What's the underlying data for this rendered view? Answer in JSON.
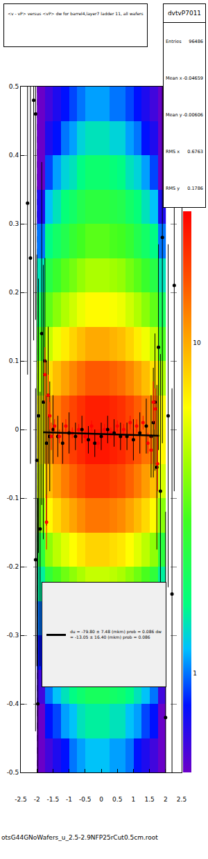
{
  "chart_data": {
    "type": "heatmap",
    "title": "<v - vP>     versus  <vP> dw for barrel4,layer7 ladder 11, all wafers",
    "xlim": [
      -2.5,
      2.5
    ],
    "ylim": [
      -0.5,
      0.5
    ],
    "xticks": [
      -2.5,
      -2,
      -1.5,
      -1,
      -0.5,
      0,
      0.5,
      1,
      1.5,
      2,
      2.5
    ],
    "yticks": [
      -0.5,
      -0.4,
      -0.3,
      -0.2,
      -0.1,
      0,
      0.1,
      0.2,
      0.3,
      0.4,
      0.5
    ],
    "grid": true,
    "cells": {
      "x": [
        -1.875,
        -1.625,
        -1.375,
        -1.125,
        -0.875,
        -0.625,
        -0.375,
        -0.125,
        0.125,
        0.375,
        0.625,
        0.875,
        1.125,
        1.375,
        1.625,
        1.875
      ],
      "y": [
        -0.475,
        -0.425,
        -0.375,
        -0.325,
        -0.275,
        -0.225,
        -0.175,
        -0.125,
        -0.075,
        -0.025,
        0.025,
        0.075,
        0.125,
        0.175,
        0.225,
        0.275,
        0.325,
        0.375,
        0.425,
        0.475
      ],
      "z": [
        [
          0.4,
          0.6,
          0.7,
          0.8,
          1.0,
          1.1,
          1.2,
          1.2,
          1.2,
          1.1,
          1.1,
          1.0,
          0.8,
          0.7,
          0.6,
          0.4
        ],
        [
          0.5,
          0.8,
          0.9,
          1.1,
          1.2,
          1.4,
          1.5,
          1.5,
          1.5,
          1.4,
          1.4,
          1.2,
          1.1,
          0.9,
          0.8,
          0.5
        ],
        [
          0.6,
          1.0,
          1.2,
          1.4,
          1.6,
          1.8,
          2.0,
          2.0,
          2.0,
          1.9,
          1.8,
          1.6,
          1.4,
          1.2,
          1.0,
          0.6
        ],
        [
          0.8,
          1.3,
          1.6,
          1.8,
          2.1,
          2.3,
          2.6,
          2.6,
          2.6,
          2.5,
          2.3,
          2.1,
          1.8,
          1.6,
          1.3,
          0.8
        ],
        [
          1.0,
          1.8,
          2.1,
          2.5,
          2.8,
          3.2,
          3.5,
          3.5,
          3.5,
          3.3,
          3.2,
          2.8,
          2.5,
          2.1,
          1.8,
          1.0
        ],
        [
          1.5,
          2.5,
          3.0,
          3.5,
          4.0,
          4.5,
          5.0,
          5.0,
          5.0,
          4.8,
          4.5,
          4.0,
          3.5,
          3.0,
          2.5,
          1.5
        ],
        [
          2.4,
          4.0,
          4.8,
          5.6,
          6.4,
          7.2,
          8.0,
          8.0,
          8.0,
          7.6,
          7.2,
          6.4,
          5.6,
          4.8,
          4.0,
          2.4
        ],
        [
          3.9,
          6.5,
          7.8,
          9.1,
          10.4,
          11.7,
          13,
          13,
          13,
          12.4,
          11.7,
          10.4,
          9.1,
          7.8,
          6.5,
          3.9
        ],
        [
          5.4,
          9.0,
          10.8,
          12.6,
          14.4,
          16.2,
          18,
          18,
          18,
          17.1,
          16.2,
          14.4,
          12.6,
          10.8,
          9.0,
          5.4
        ],
        [
          6.6,
          11,
          13.2,
          15.4,
          17.6,
          19.8,
          22,
          22,
          22,
          20.9,
          19.8,
          17.6,
          15.4,
          13.2,
          11,
          6.6
        ],
        [
          6.3,
          10.5,
          12.6,
          14.7,
          16.8,
          18.9,
          21,
          21,
          21,
          20,
          18.9,
          16.8,
          14.7,
          12.6,
          10.5,
          6.3
        ],
        [
          4.5,
          7.5,
          9,
          10.5,
          12,
          13.5,
          15,
          15,
          15,
          14.3,
          13.5,
          12,
          10.5,
          9,
          7.5,
          4.5
        ],
        [
          3,
          5,
          6,
          7,
          8,
          9,
          10,
          10,
          10,
          9.5,
          9,
          8,
          7,
          6,
          5,
          3
        ],
        [
          2,
          3.3,
          3.9,
          4.6,
          5.2,
          5.9,
          6.5,
          6.5,
          6.5,
          6.2,
          5.9,
          5.2,
          4.6,
          3.9,
          3.3,
          2
        ],
        [
          1.4,
          2.3,
          2.7,
          3.2,
          3.6,
          4.1,
          4.5,
          4.5,
          4.5,
          4.3,
          4.1,
          3.6,
          3.2,
          2.7,
          2.3,
          1.4
        ],
        [
          1,
          1.6,
          1.9,
          2.2,
          2.6,
          2.9,
          3.2,
          3.2,
          3.2,
          3,
          2.9,
          2.6,
          2.2,
          1.9,
          1.6,
          1
        ],
        [
          0.7,
          1.2,
          1.4,
          1.7,
          1.9,
          2.2,
          2.4,
          2.4,
          2.4,
          2.3,
          2.2,
          1.9,
          1.7,
          1.4,
          1.2,
          0.7
        ],
        [
          0.5,
          0.9,
          1.1,
          1.3,
          1.4,
          1.6,
          1.8,
          1.8,
          1.8,
          1.7,
          1.6,
          1.4,
          1.3,
          1.1,
          0.9,
          0.5
        ],
        [
          0.4,
          0.7,
          0.8,
          1,
          1.1,
          1.3,
          1.4,
          1.4,
          1.4,
          1.3,
          1.3,
          1.1,
          1,
          0.8,
          0.7,
          0.4
        ],
        [
          0.3,
          0.6,
          0.7,
          0.8,
          0.9,
          1,
          1.1,
          1.1,
          1.1,
          1,
          1,
          0.9,
          0.8,
          0.7,
          0.6,
          0.3
        ]
      ]
    },
    "colorbar": {
      "range": [
        0.5,
        25
      ],
      "ticks": [
        1,
        10
      ]
    },
    "series": [
      {
        "type": "scatter",
        "color": "black",
        "marker": "circle",
        "x": [
          -2.29,
          -2.2,
          -2.1,
          -2.04,
          -2.0,
          -2.04,
          -1.97,
          -1.95,
          -1.9,
          -1.85,
          -1.8,
          -1.75,
          -1.7,
          -1.65,
          -1.6,
          -1.5,
          -1.35,
          -1.2,
          -1.0,
          -0.8,
          -0.6,
          -0.4,
          -0.2,
          0.0,
          0.2,
          0.4,
          0.6,
          0.8,
          1.0,
          1.2,
          1.4,
          1.55,
          1.62,
          1.67,
          1.73,
          1.78,
          1.84,
          1.9,
          2.0,
          2.08,
          2.2,
          2.27
        ],
        "values": [
          0.33,
          0.25,
          0.48,
          0.46,
          -0.045,
          -0.19,
          -0.4,
          0.02,
          -0.145,
          0.14,
          0.04,
          0.1,
          -0.02,
          0.05,
          -0.01,
          0.0,
          -0.01,
          -0.02,
          -0.005,
          -0.01,
          0.0,
          -0.015,
          -0.02,
          -0.01,
          0.0,
          -0.005,
          -0.01,
          -0.01,
          -0.015,
          -0.005,
          0.005,
          -0.01,
          0.01,
          0.04,
          -0.055,
          0.12,
          -0.09,
          0.28,
          -0.42,
          0.02,
          -0.24,
          0.21
        ],
        "errors": [
          0.25,
          0.3,
          0.35,
          0.3,
          0.3,
          0.25,
          0.3,
          0.2,
          0.2,
          0.25,
          0.2,
          0.15,
          0.12,
          0.1,
          0.08,
          0.05,
          0.03,
          0.03,
          0.03,
          0.02,
          0.02,
          0.02,
          0.02,
          0.02,
          0.02,
          0.02,
          0.02,
          0.02,
          0.03,
          0.03,
          0.04,
          0.06,
          0.08,
          0.1,
          0.12,
          0.15,
          0.2,
          0.3,
          0.3,
          0.25,
          0.3,
          0.3
        ]
      },
      {
        "type": "scatter",
        "color": "red",
        "marker": "circle",
        "x": [
          -1.75,
          -1.7,
          -1.65,
          -1.6,
          -1.55,
          -1.45,
          -1.3,
          -1.1,
          -0.9,
          -0.7,
          -0.5,
          -0.3,
          -0.1,
          0.1,
          0.3,
          0.5,
          0.7,
          0.9,
          1.1,
          1.3,
          1.45,
          1.55,
          1.62,
          1.68,
          1.75
        ],
        "values": [
          0.08,
          -0.135,
          0.05,
          0.02,
          -0.01,
          0.005,
          -0.01,
          0.005,
          -0.005,
          0.0,
          -0.01,
          0.005,
          -0.02,
          0.0,
          -0.005,
          0.005,
          0.0,
          0.01,
          0.005,
          0.01,
          -0.02,
          -0.03,
          0.04,
          0.03,
          -0.05
        ],
        "errors": [
          0.04,
          0.04,
          0.03,
          0.02,
          0.02,
          0.01,
          0.01,
          0.01,
          0.008,
          0.008,
          0.008,
          0.008,
          0.008,
          0.008,
          0.008,
          0.008,
          0.008,
          0.01,
          0.01,
          0.01,
          0.015,
          0.02,
          0.03,
          0.03,
          0.04
        ]
      },
      {
        "type": "line",
        "color": "black",
        "line_style": "solid",
        "name": "du = -79.80 ± 7.48 (mkm) prob = 0.086 dw = -13.05 ± 16.40 (mkm) prob = 0.086",
        "x": [
          -1.8,
          1.8
        ],
        "values": [
          -0.004,
          -0.009
        ]
      }
    ],
    "stats": {
      "title": "dvtvP7011",
      "rows": [
        [
          "Entries",
          96486
        ],
        [
          "Mean x",
          -0.04659
        ],
        [
          "Mean y",
          -0.00606
        ],
        [
          "RMS x",
          0.6763
        ],
        [
          "RMS y",
          0.1786
        ]
      ]
    },
    "footer": "otsG44GNoWafers_u_2.5-2.9NFP25rCut0.5cm.root"
  }
}
